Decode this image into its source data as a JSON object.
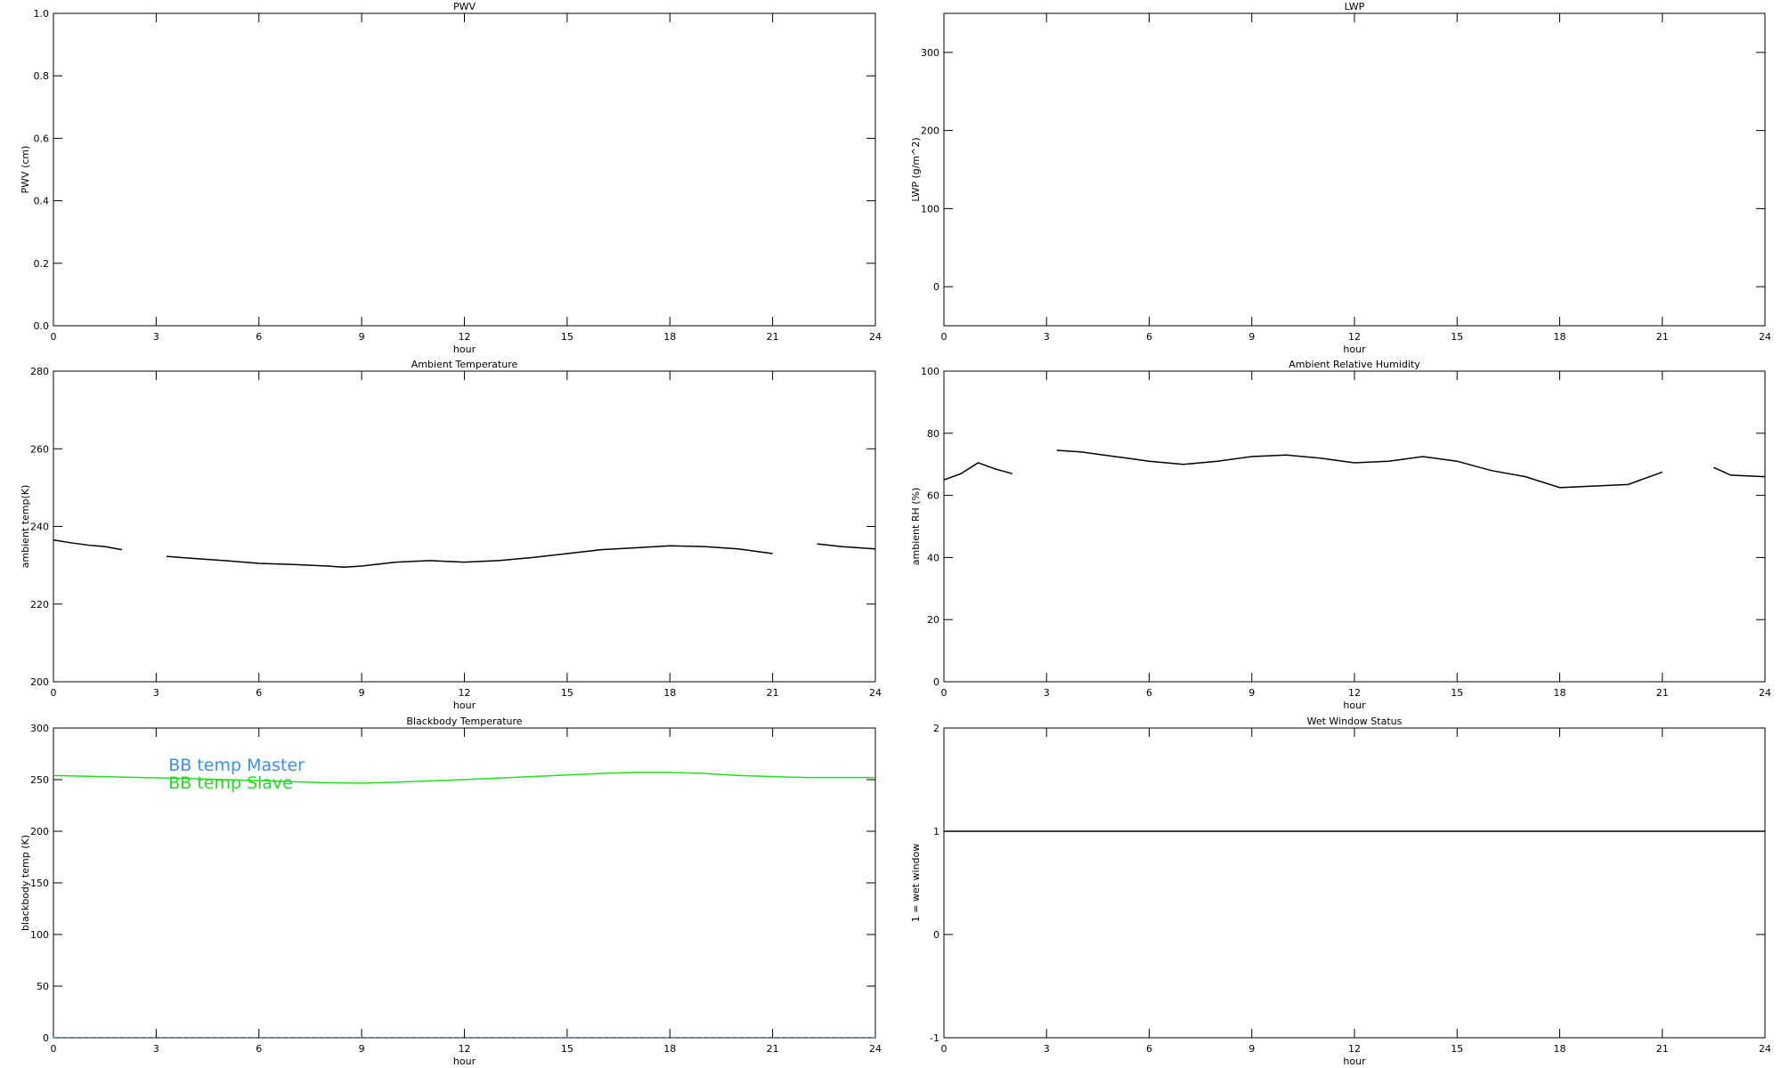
{
  "chart_data": [
    {
      "type": "line",
      "title": "PWV",
      "xlabel": "hour",
      "ylabel": "PWV (cm)",
      "xlim": [
        0,
        24
      ],
      "xticks": [
        0,
        3,
        6,
        9,
        12,
        15,
        18,
        21,
        24
      ],
      "ylim": [
        0,
        1
      ],
      "yticks": [
        {
          "value": 0,
          "label": "0.0"
        },
        0.2,
        0.4,
        0.6,
        0.8,
        {
          "value": 1,
          "label": "1.0"
        }
      ],
      "x": [],
      "series": []
    },
    {
      "type": "line",
      "title": "LWP",
      "xlabel": "hour",
      "ylabel": "LWP (g/m^2)",
      "xlim": [
        0,
        24
      ],
      "xticks": [
        0,
        3,
        6,
        9,
        12,
        15,
        18,
        21,
        24
      ],
      "ylim": [
        -50,
        350
      ],
      "yticks": [
        0,
        100,
        200,
        300
      ],
      "x": [],
      "series": []
    },
    {
      "type": "line",
      "title": "Ambient Temperature",
      "xlabel": "hour",
      "ylabel": "ambient temp(K)",
      "xlim": [
        0,
        24
      ],
      "xticks": [
        0,
        3,
        6,
        9,
        12,
        15,
        18,
        21,
        24
      ],
      "ylim": [
        200,
        280
      ],
      "yticks": [
        200,
        220,
        240,
        260,
        280
      ],
      "x": [
        0,
        0.5,
        1,
        1.5,
        2,
        2.5,
        3.3,
        4,
        5,
        6,
        7,
        8,
        8.5,
        9,
        10,
        11,
        12,
        13,
        14,
        15,
        16,
        17,
        18,
        19,
        20,
        21,
        21.5,
        22.3,
        23,
        24
      ],
      "series": [
        {
          "color": "#000000",
          "values": [
            236.5,
            235.8,
            235.2,
            234.8,
            234,
            null,
            232.3,
            231.8,
            231.2,
            230.5,
            230.2,
            229.8,
            229.5,
            229.8,
            230.8,
            231.2,
            230.8,
            231.2,
            232,
            233,
            234,
            234.5,
            235,
            234.8,
            234.2,
            233,
            null,
            235.5,
            234.8,
            234.2
          ]
        }
      ]
    },
    {
      "type": "line",
      "title": "Ambient Relative Humidity",
      "xlabel": "hour",
      "ylabel": "ambient RH (%)",
      "xlim": [
        0,
        24
      ],
      "xticks": [
        0,
        3,
        6,
        9,
        12,
        15,
        18,
        21,
        24
      ],
      "ylim": [
        0,
        100
      ],
      "yticks": [
        0,
        20,
        40,
        60,
        80,
        100
      ],
      "x": [
        0,
        0.5,
        1,
        1.5,
        2,
        2.6,
        3.3,
        4,
        5,
        6,
        7,
        8,
        9,
        10,
        11,
        12,
        13,
        14,
        15,
        16,
        17,
        18,
        19,
        20,
        21,
        21.8,
        22.5,
        23,
        24
      ],
      "series": [
        {
          "color": "#000000",
          "values": [
            65,
            67,
            70.5,
            68.5,
            67,
            null,
            74.5,
            74,
            72.5,
            71,
            70,
            71,
            72.5,
            73,
            72,
            70.5,
            71,
            72.5,
            71,
            68,
            66,
            62.5,
            63,
            63.5,
            67.5,
            null,
            69,
            66.5,
            66
          ]
        }
      ]
    },
    {
      "type": "line",
      "title": "Blackbody Temperature",
      "xlabel": "hour",
      "ylabel": "blackbody temp (K)",
      "xlim": [
        0,
        24
      ],
      "xticks": [
        0,
        3,
        6,
        9,
        12,
        15,
        18,
        21,
        24
      ],
      "ylim": [
        0,
        300
      ],
      "yticks": [
        0,
        50,
        100,
        150,
        200,
        250,
        300
      ],
      "legend": "upper-left",
      "x": [
        0,
        2,
        4,
        6,
        8,
        9,
        10,
        12,
        14,
        16,
        17,
        18,
        19,
        20,
        22,
        24
      ],
      "series": [
        {
          "name": "BB temp Master",
          "color": "#3d8ef0",
          "values": [
            0,
            0,
            0,
            0,
            0,
            0,
            0,
            0,
            0,
            0,
            0,
            0,
            0,
            0,
            0,
            0
          ]
        },
        {
          "name": "BB temp Slave",
          "color": "#22dd22",
          "values": [
            254,
            252.5,
            251,
            249,
            247,
            246.5,
            247.5,
            250,
            253,
            256,
            257,
            257,
            256,
            254,
            252,
            252
          ]
        }
      ]
    },
    {
      "type": "line",
      "title": "Wet Window Status",
      "xlabel": "hour",
      "ylabel": "1 = wet window",
      "xlim": [
        0,
        24
      ],
      "xticks": [
        0,
        3,
        6,
        9,
        12,
        15,
        18,
        21,
        24
      ],
      "ylim": [
        -1,
        2
      ],
      "yticks": [
        -1,
        0,
        1,
        2
      ],
      "x": [
        0,
        24
      ],
      "series": [
        {
          "color": "#000000",
          "values": [
            1,
            1
          ]
        }
      ]
    }
  ]
}
